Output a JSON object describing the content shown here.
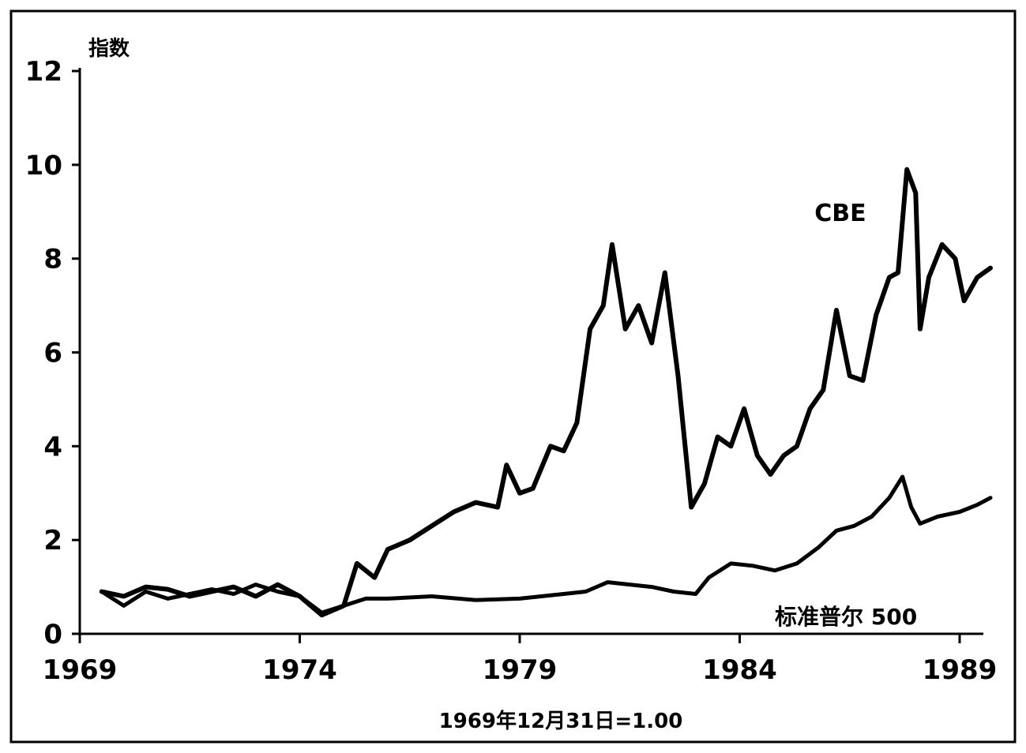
{
  "chart_data": {
    "type": "line",
    "ylabel": "指数",
    "caption": "1969年12月31日=1.00",
    "xlim": [
      1969,
      1989
    ],
    "ylim": [
      0,
      12
    ],
    "x_ticks": [
      {
        "value": 1969,
        "label": "1969"
      },
      {
        "value": 1974,
        "label": "1974"
      },
      {
        "value": 1979,
        "label": "1979"
      },
      {
        "value": 1984,
        "label": "1984"
      },
      {
        "value": 1989,
        "label": "1989"
      }
    ],
    "y_ticks": [
      0,
      2,
      4,
      6,
      8,
      10,
      12
    ],
    "grid": false,
    "series": [
      {
        "name": "CBE",
        "color": "#000000",
        "label_position": "above series near 1985",
        "points": [
          [
            1969.5,
            0.9
          ],
          [
            1970.0,
            0.8
          ],
          [
            1970.5,
            1.0
          ],
          [
            1971.0,
            0.95
          ],
          [
            1971.5,
            0.8
          ],
          [
            1972.0,
            0.9
          ],
          [
            1972.5,
            1.0
          ],
          [
            1973.0,
            0.8
          ],
          [
            1973.5,
            1.05
          ],
          [
            1974.0,
            0.8
          ],
          [
            1974.5,
            0.4
          ],
          [
            1975.0,
            0.6
          ],
          [
            1975.3,
            1.5
          ],
          [
            1975.7,
            1.2
          ],
          [
            1976.0,
            1.8
          ],
          [
            1976.5,
            2.0
          ],
          [
            1977.0,
            2.3
          ],
          [
            1977.5,
            2.6
          ],
          [
            1978.0,
            2.8
          ],
          [
            1978.5,
            2.7
          ],
          [
            1978.7,
            3.6
          ],
          [
            1979.0,
            3.0
          ],
          [
            1979.3,
            3.1
          ],
          [
            1979.7,
            4.0
          ],
          [
            1980.0,
            3.9
          ],
          [
            1980.3,
            4.5
          ],
          [
            1980.6,
            6.5
          ],
          [
            1980.9,
            7.0
          ],
          [
            1981.1,
            8.3
          ],
          [
            1981.4,
            6.5
          ],
          [
            1981.7,
            7.0
          ],
          [
            1982.0,
            6.2
          ],
          [
            1982.3,
            7.7
          ],
          [
            1982.6,
            5.5
          ],
          [
            1982.9,
            2.7
          ],
          [
            1983.2,
            3.2
          ],
          [
            1983.5,
            4.2
          ],
          [
            1983.8,
            4.0
          ],
          [
            1984.1,
            4.8
          ],
          [
            1984.4,
            3.8
          ],
          [
            1984.7,
            3.4
          ],
          [
            1985.0,
            3.8
          ],
          [
            1985.3,
            4.0
          ],
          [
            1985.6,
            4.8
          ],
          [
            1985.9,
            5.2
          ],
          [
            1986.2,
            6.9
          ],
          [
            1986.5,
            5.5
          ],
          [
            1986.8,
            5.4
          ],
          [
            1987.1,
            6.8
          ],
          [
            1987.4,
            7.6
          ],
          [
            1987.6,
            7.7
          ],
          [
            1987.8,
            9.9
          ],
          [
            1988.0,
            9.4
          ],
          [
            1988.1,
            6.5
          ],
          [
            1988.3,
            7.6
          ],
          [
            1988.6,
            8.3
          ],
          [
            1988.9,
            8.0
          ],
          [
            1989.1,
            7.1
          ],
          [
            1989.4,
            7.6
          ],
          [
            1989.7,
            7.8
          ]
        ]
      },
      {
        "name": "标准普尔 500",
        "color": "#000000",
        "label_position": "below series near 1988",
        "points": [
          [
            1969.5,
            0.9
          ],
          [
            1970.0,
            0.6
          ],
          [
            1970.5,
            0.9
          ],
          [
            1971.0,
            0.75
          ],
          [
            1971.5,
            0.85
          ],
          [
            1972.0,
            0.95
          ],
          [
            1972.5,
            0.85
          ],
          [
            1973.0,
            1.05
          ],
          [
            1973.5,
            0.9
          ],
          [
            1974.0,
            0.8
          ],
          [
            1974.5,
            0.45
          ],
          [
            1975.0,
            0.6
          ],
          [
            1975.5,
            0.75
          ],
          [
            1976.0,
            0.75
          ],
          [
            1977.0,
            0.8
          ],
          [
            1978.0,
            0.72
          ],
          [
            1979.0,
            0.75
          ],
          [
            1980.0,
            0.85
          ],
          [
            1980.5,
            0.9
          ],
          [
            1981.0,
            1.1
          ],
          [
            1981.5,
            1.05
          ],
          [
            1982.0,
            1.0
          ],
          [
            1982.5,
            0.9
          ],
          [
            1983.0,
            0.85
          ],
          [
            1983.3,
            1.2
          ],
          [
            1983.8,
            1.5
          ],
          [
            1984.3,
            1.45
          ],
          [
            1984.8,
            1.35
          ],
          [
            1985.3,
            1.5
          ],
          [
            1985.8,
            1.85
          ],
          [
            1986.2,
            2.2
          ],
          [
            1986.6,
            2.3
          ],
          [
            1987.0,
            2.5
          ],
          [
            1987.4,
            2.9
          ],
          [
            1987.7,
            3.35
          ],
          [
            1987.9,
            2.7
          ],
          [
            1988.1,
            2.35
          ],
          [
            1988.5,
            2.5
          ],
          [
            1989.0,
            2.6
          ],
          [
            1989.4,
            2.75
          ],
          [
            1989.7,
            2.9
          ]
        ]
      }
    ]
  }
}
